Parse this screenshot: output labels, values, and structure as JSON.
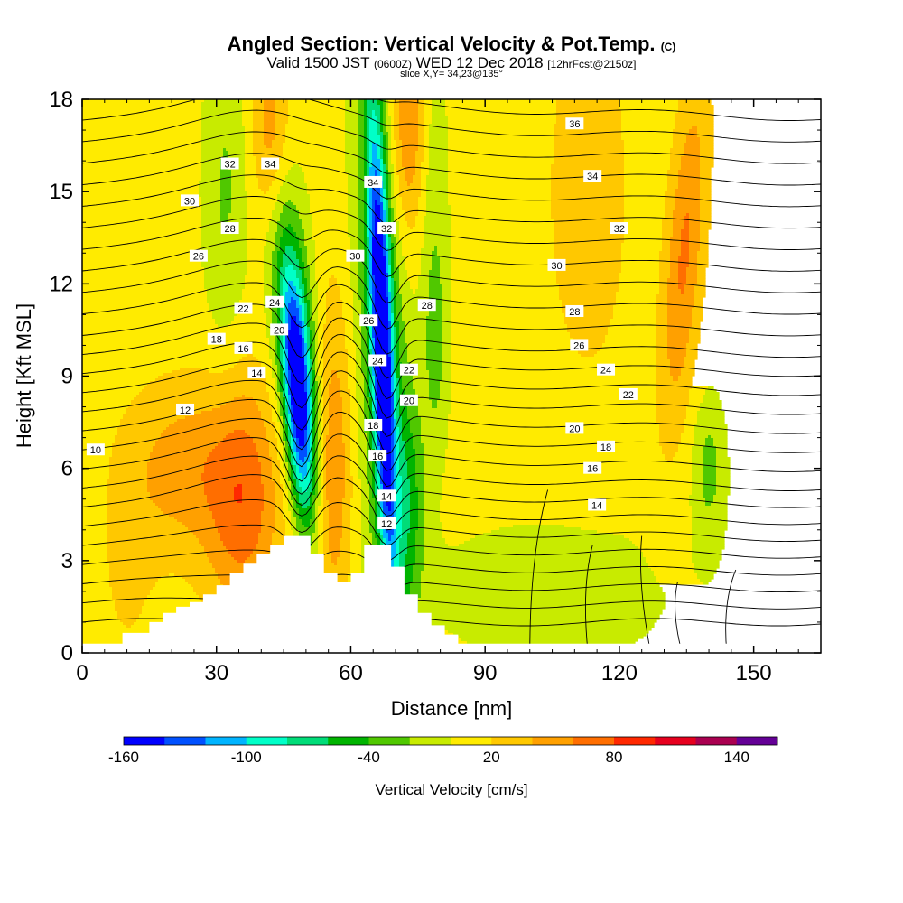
{
  "header": {
    "title_main": "Angled Section: Vertical Velocity & Pot.Temp.",
    "title_mark": "(C)",
    "valid_text": "Valid 1500 JST",
    "valid_zulu": "(0600Z)",
    "valid_date": "WED 12 Dec 2018",
    "forecast": "[12hrFcst@2150z]",
    "slice": "slice X,Y= 34,23@135°"
  },
  "chart_data": {
    "type": "contour",
    "xlabel": "Distance [nm]",
    "ylabel": "Height [Kft MSL]",
    "xlim": [
      0,
      165
    ],
    "ylim": [
      0,
      18
    ],
    "x_ticks": [
      0,
      30,
      60,
      90,
      120,
      150
    ],
    "y_ticks": [
      0,
      3,
      6,
      9,
      12,
      15,
      18
    ],
    "colorbar": {
      "label": "Vertical Velocity [cm/s]",
      "tick_labels": [
        -160,
        -100,
        -40,
        20,
        80,
        140
      ],
      "levels": [
        -160,
        -140,
        -120,
        -100,
        -80,
        -60,
        -40,
        -20,
        0,
        20,
        40,
        60,
        80,
        100,
        120,
        140,
        160
      ],
      "colors": [
        "#0000ff",
        "#0050ff",
        "#00b4ff",
        "#00ffc8",
        "#00dc78",
        "#00b400",
        "#50c800",
        "#c8eb00",
        "#ffeb00",
        "#ffc800",
        "#ffa000",
        "#ff6e00",
        "#ff2800",
        "#e6001e",
        "#aa0050",
        "#640096"
      ]
    },
    "isentropes": {
      "field": "Potential Temperature",
      "labeled_values": [
        10,
        12,
        14,
        16,
        18,
        20,
        22,
        24,
        26,
        28,
        30,
        32,
        34,
        36
      ]
    },
    "vertical_velocity_features": [
      {
        "kind": "downdraft",
        "x_range": [
          44,
          52
        ],
        "height_range": [
          3.5,
          12.0
        ],
        "min": -150
      },
      {
        "kind": "downdraft",
        "x_range": [
          63,
          72
        ],
        "height_range": [
          4.0,
          18.0
        ],
        "min": -150
      },
      {
        "kind": "updraft",
        "x_range": [
          30,
          42
        ],
        "height_range": [
          2.0,
          9.0
        ],
        "max": 70
      },
      {
        "kind": "updraft",
        "x_range": [
          128,
          140
        ],
        "height_range": [
          8.0,
          18.0
        ],
        "max": 60
      }
    ],
    "terrain_profile": {
      "distance_nm": [
        0,
        9,
        9,
        15,
        15,
        18,
        18,
        21,
        21,
        24,
        24,
        27,
        27,
        30,
        30,
        33,
        33,
        36,
        36,
        39,
        39,
        42,
        42,
        45,
        45,
        51,
        51,
        54,
        54,
        57,
        57,
        60,
        60,
        63,
        63,
        66,
        66,
        69,
        69,
        72,
        72,
        75,
        75,
        78,
        78,
        81,
        81,
        84,
        84,
        87,
        87,
        165
      ],
      "height_kft": [
        0.3,
        0.3,
        0.65,
        0.65,
        1.0,
        1.0,
        1.3,
        1.3,
        1.5,
        1.5,
        1.65,
        1.65,
        1.9,
        1.9,
        2.2,
        2.2,
        2.6,
        2.6,
        2.9,
        2.9,
        3.2,
        3.2,
        3.5,
        3.5,
        3.8,
        3.8,
        3.2,
        3.2,
        2.6,
        2.6,
        2.3,
        2.3,
        2.6,
        2.6,
        3.5,
        3.5,
        3.5,
        3.5,
        2.8,
        2.8,
        1.9,
        1.9,
        1.3,
        1.3,
        0.9,
        0.9,
        0.6,
        0.6,
        0.3,
        0.3,
        0.3,
        0.3
      ]
    }
  }
}
